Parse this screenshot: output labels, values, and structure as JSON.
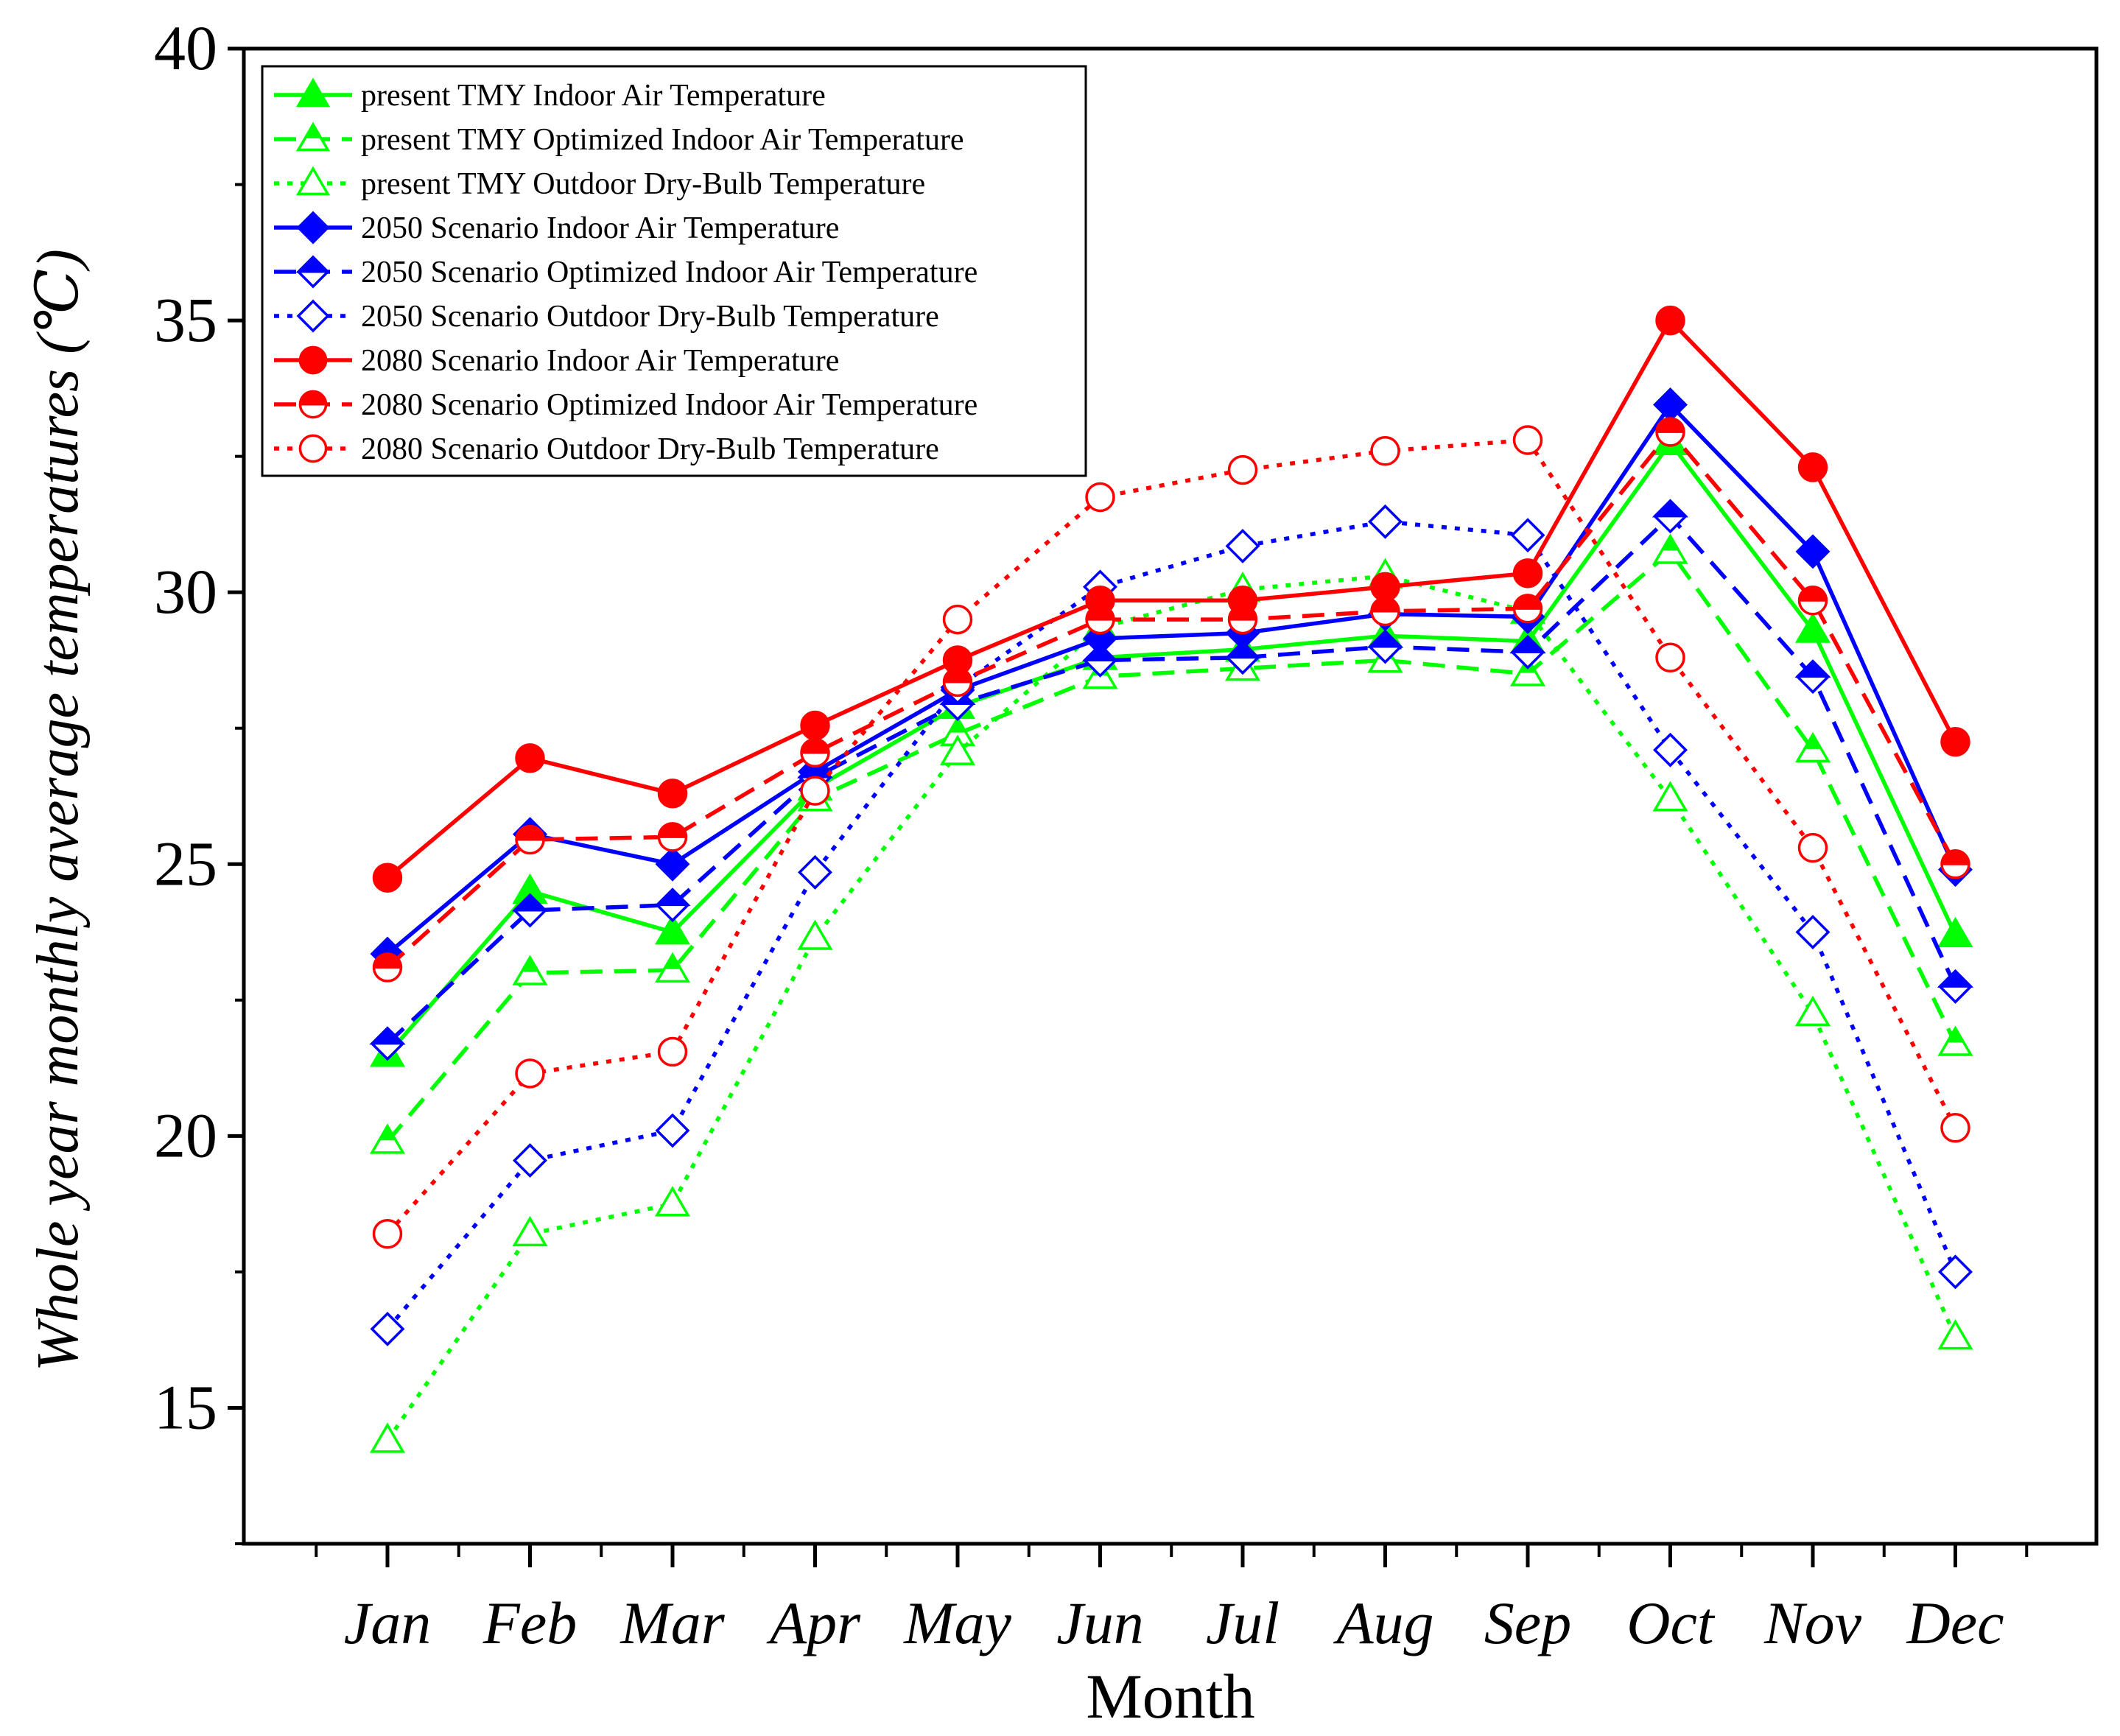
{
  "chart_data": {
    "type": "line",
    "xlabel": "Month",
    "ylabel": "Whole year monthly average temperatures (℃)",
    "ylim": [
      12.5,
      40
    ],
    "yticks": [
      15,
      20,
      25,
      30,
      35,
      40
    ],
    "categories": [
      "Jan",
      "Feb",
      "Mar",
      "Apr",
      "May",
      "Jun",
      "Jul",
      "Aug",
      "Sep",
      "Oct",
      "Nov",
      "Dec"
    ],
    "legend_position": "top-left",
    "grid": false,
    "series": [
      {
        "name": "present TMY Indoor Air Temperature",
        "color": "#00ff00",
        "dash": "solid",
        "marker": "triangle",
        "fill": "full",
        "values": [
          21.5,
          24.5,
          23.75,
          26.4,
          27.9,
          28.8,
          28.95,
          29.2,
          29.1,
          32.75,
          29.3,
          23.7
        ]
      },
      {
        "name": "present TMY Optimized Indoor Air Temperature",
        "color": "#00ff00",
        "dash": "dash",
        "marker": "triangle",
        "fill": "half",
        "values": [
          19.9,
          23.0,
          23.05,
          26.2,
          27.4,
          28.45,
          28.6,
          28.75,
          28.5,
          30.75,
          27.1,
          21.7
        ]
      },
      {
        "name": "present TMY Outdoor Dry-Bulb Temperature",
        "color": "#00ff00",
        "dash": "dot",
        "marker": "triangle",
        "fill": "open",
        "values": [
          14.4,
          18.2,
          18.75,
          23.65,
          27.05,
          29.35,
          30.05,
          30.3,
          29.65,
          26.2,
          22.25,
          16.3
        ]
      },
      {
        "name": "2050 Scenario Indoor Air Temperature",
        "color": "#0000ff",
        "dash": "solid",
        "marker": "diamond",
        "fill": "full",
        "values": [
          23.35,
          25.55,
          25.0,
          26.7,
          28.2,
          29.15,
          29.25,
          29.6,
          29.55,
          33.45,
          30.75,
          24.9
        ]
      },
      {
        "name": "2050 Scenario Optimized  Indoor Air Temperature",
        "color": "#0000ff",
        "dash": "dash",
        "marker": "diamond",
        "fill": "half",
        "values": [
          21.7,
          24.15,
          24.25,
          26.6,
          27.95,
          28.75,
          28.8,
          29.0,
          28.9,
          31.4,
          28.45,
          22.75
        ]
      },
      {
        "name": "2050 Scenario Outdoor Dry-Bulb Temperature",
        "color": "#0000ff",
        "dash": "dot",
        "marker": "diamond",
        "fill": "open",
        "values": [
          16.45,
          19.55,
          20.1,
          24.85,
          28.25,
          30.1,
          30.85,
          31.3,
          31.05,
          27.1,
          23.75,
          17.5
        ]
      },
      {
        "name": "2080 Scenario Indoor Air Temperature",
        "color": "#ff0000",
        "dash": "solid",
        "marker": "circle",
        "fill": "full",
        "values": [
          24.75,
          26.95,
          26.3,
          27.55,
          28.75,
          29.85,
          29.85,
          30.1,
          30.35,
          35.0,
          32.3,
          27.25
        ]
      },
      {
        "name": "2080 Scenario Optimized  Indoor Air Temperature",
        "color": "#ff0000",
        "dash": "dash",
        "marker": "circle",
        "fill": "half",
        "values": [
          23.1,
          25.45,
          25.5,
          27.05,
          28.35,
          29.5,
          29.5,
          29.65,
          29.7,
          32.95,
          29.85,
          25.0
        ]
      },
      {
        "name": "2080 Scenario Outdoor Dry-Bulb Temperature",
        "color": "#ff0000",
        "dash": "dot",
        "marker": "circle",
        "fill": "open",
        "values": [
          18.2,
          21.15,
          21.55,
          26.35,
          29.5,
          31.75,
          32.25,
          32.6,
          32.8,
          28.8,
          25.3,
          20.15
        ]
      }
    ]
  }
}
